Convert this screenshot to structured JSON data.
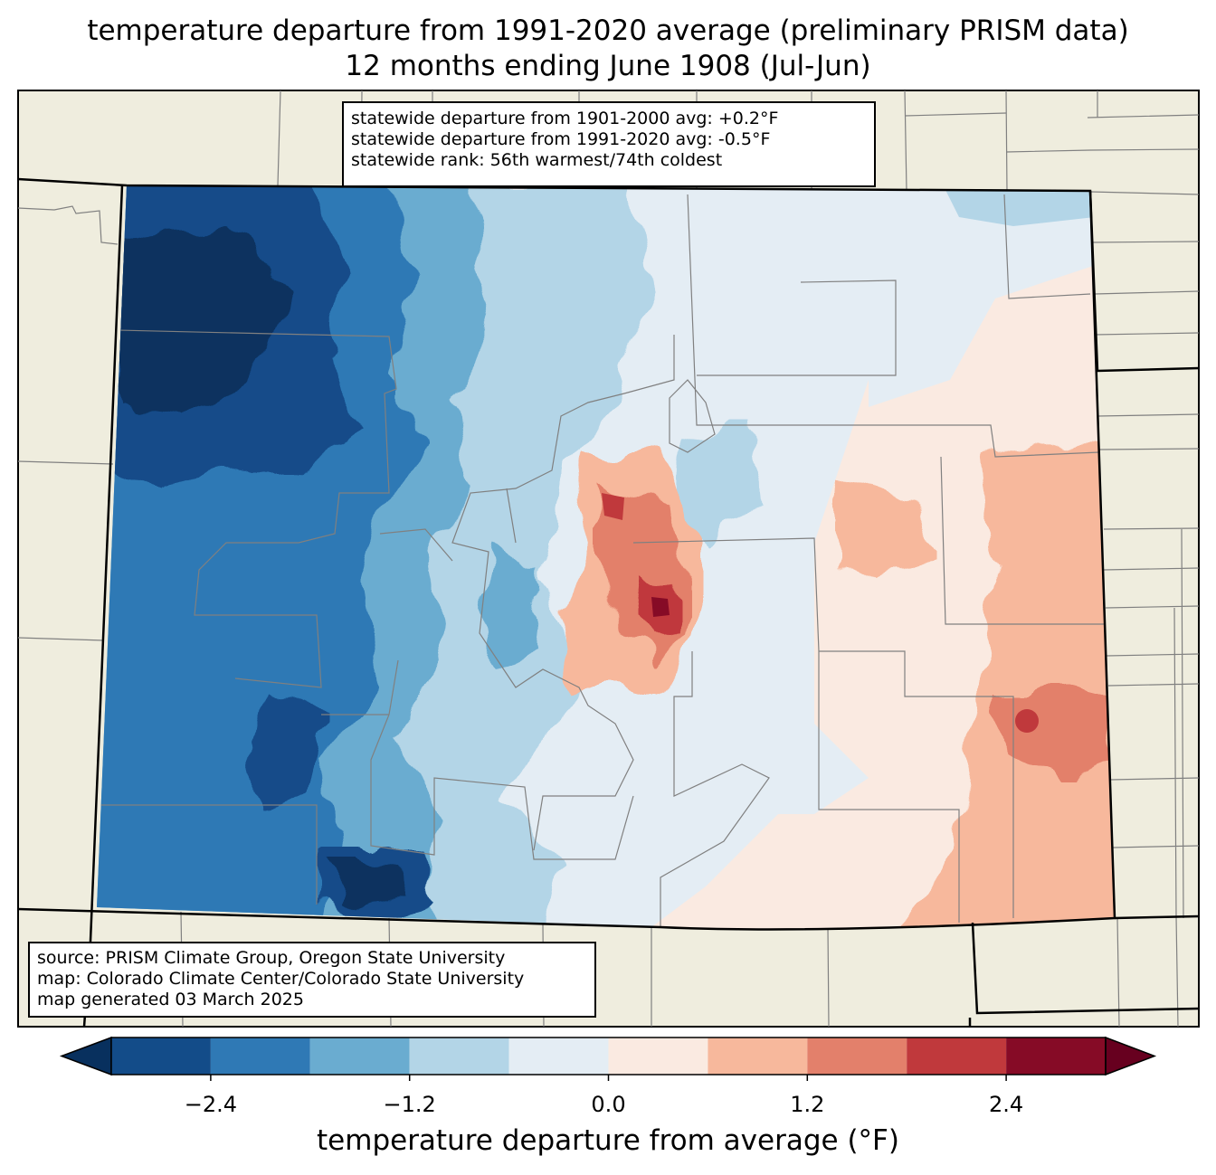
{
  "title": {
    "line1": "temperature departure from 1991-2020 average (preliminary PRISM data)",
    "line2": "12 months ending June 1908 (Jul-Jun)"
  },
  "stats": {
    "line1": "statewide departure from 1901-2000 avg: +0.2°F",
    "line2": "statewide departure from 1991-2020 avg: -0.5°F",
    "line3": "statewide rank: 56th warmest/74th coldest"
  },
  "credits": {
    "line1": "source: PRISM Climate Group, Oregon State University",
    "line2": "map: Colorado Climate Center/Colorado State University",
    "line3": "map generated 03 March 2025"
  },
  "colorbar": {
    "label": "temperature departure from average (°F)",
    "ticks": [
      "−2.4",
      "−1.2",
      "0.0",
      "1.2",
      "2.4"
    ],
    "tick_values": [
      -2.4,
      -1.2,
      0.0,
      1.2,
      2.4
    ],
    "range": [
      -3.0,
      3.0
    ],
    "extend": "both",
    "bins": [
      {
        "min": -3.0,
        "max": -2.4,
        "color": "#134c89"
      },
      {
        "min": -2.4,
        "max": -1.8,
        "color": "#2f79b5"
      },
      {
        "min": -1.8,
        "max": -1.2,
        "color": "#6aacd0"
      },
      {
        "min": -1.2,
        "max": -0.6,
        "color": "#b3d5e7"
      },
      {
        "min": -0.6,
        "max": 0.0,
        "color": "#e4edf4"
      },
      {
        "min": 0.0,
        "max": 0.6,
        "color": "#faeae1"
      },
      {
        "min": 0.6,
        "max": 1.2,
        "color": "#f7b89c"
      },
      {
        "min": 1.2,
        "max": 1.8,
        "color": "#e3806b"
      },
      {
        "min": 1.8,
        "max": 2.4,
        "color": "#c0393c"
      },
      {
        "min": 2.4,
        "max": 3.0,
        "color": "#860b26"
      }
    ],
    "under_color": "#08305e",
    "over_color": "#67001f"
  },
  "map_colors": {
    "background": "#efedde",
    "county_lines": "#808080",
    "state_lines": "#000000"
  }
}
